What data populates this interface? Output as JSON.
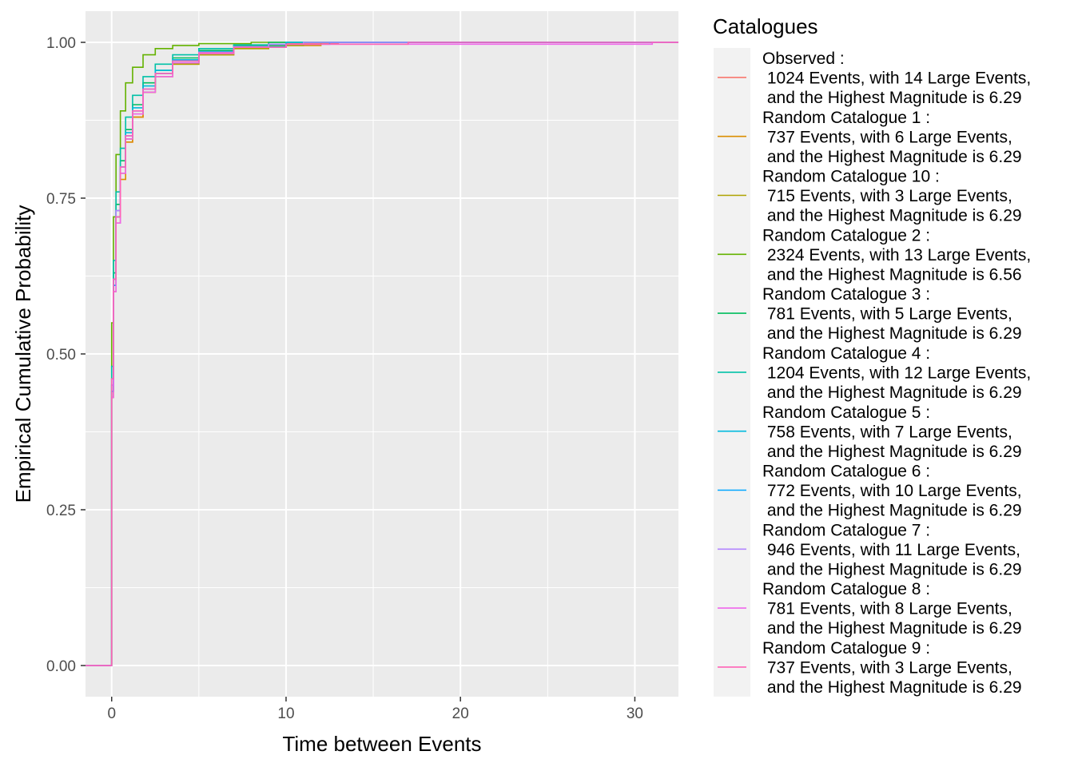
{
  "chart_data": {
    "type": "line",
    "title": "",
    "xlabel": "Time between Events",
    "ylabel": "Empirical Cumulative Probability",
    "xlim": [
      -1.5,
      32.5
    ],
    "ylim": [
      -0.05,
      1.05
    ],
    "x_ticks": [
      0,
      10,
      20,
      30
    ],
    "x_tick_labels": [
      "0",
      "10",
      "20",
      "30"
    ],
    "y_ticks": [
      0,
      0.25,
      0.5,
      0.75,
      1
    ],
    "y_tick_labels": [
      "0.00",
      "0.25",
      "0.50",
      "0.75",
      "1.00"
    ],
    "grid": true,
    "legend": {
      "title": "Catalogues",
      "position": "right"
    },
    "series": [
      {
        "name": "Observed :\n 1024 Events, with 14 Large Events,\n and the Highest Magnitude is 6.29",
        "color": "#F8766D",
        "points": [
          [
            -1.5,
            0
          ],
          [
            0,
            0
          ],
          [
            0,
            0.45
          ],
          [
            0.1,
            0.62
          ],
          [
            0.25,
            0.72
          ],
          [
            0.5,
            0.79
          ],
          [
            0.8,
            0.84
          ],
          [
            1.2,
            0.88
          ],
          [
            1.8,
            0.92
          ],
          [
            2.5,
            0.95
          ],
          [
            3.5,
            0.97
          ],
          [
            5,
            0.985
          ],
          [
            7,
            0.993
          ],
          [
            10,
            0.998
          ],
          [
            13,
            1
          ],
          [
            32.5,
            1
          ]
        ]
      },
      {
        "name": "Random Catalogue 1 :\n 737 Events, with 6 Large Events,\n and the Highest Magnitude is 6.29",
        "color": "#DB8E00",
        "points": [
          [
            -1.5,
            0
          ],
          [
            0,
            0
          ],
          [
            0,
            0.43
          ],
          [
            0.1,
            0.6
          ],
          [
            0.25,
            0.71
          ],
          [
            0.5,
            0.78
          ],
          [
            0.8,
            0.84
          ],
          [
            1.2,
            0.88
          ],
          [
            1.8,
            0.92
          ],
          [
            2.5,
            0.945
          ],
          [
            3.5,
            0.965
          ],
          [
            5,
            0.98
          ],
          [
            7,
            0.99
          ],
          [
            9,
            0.995
          ],
          [
            12,
            1
          ],
          [
            32.5,
            1
          ]
        ]
      },
      {
        "name": "Random Catalogue 10 :\n 715 Events, with 3 Large Events,\n and the Highest Magnitude is 6.29",
        "color": "#AEA200",
        "points": [
          [
            -1.5,
            0
          ],
          [
            0,
            0
          ],
          [
            0,
            0.44
          ],
          [
            0.1,
            0.61
          ],
          [
            0.25,
            0.72
          ],
          [
            0.5,
            0.79
          ],
          [
            0.8,
            0.845
          ],
          [
            1.2,
            0.885
          ],
          [
            1.8,
            0.92
          ],
          [
            2.5,
            0.95
          ],
          [
            3.5,
            0.965
          ],
          [
            5,
            0.98
          ],
          [
            7,
            0.99
          ],
          [
            9,
            0.995
          ],
          [
            11,
            1
          ],
          [
            32.5,
            1
          ]
        ]
      },
      {
        "name": "Random Catalogue 2 :\n 2324 Events, with 13 Large Events,\n and the Highest Magnitude is 6.56",
        "color": "#64B200",
        "points": [
          [
            -1.5,
            0
          ],
          [
            0,
            0
          ],
          [
            0,
            0.55
          ],
          [
            0.1,
            0.72
          ],
          [
            0.25,
            0.82
          ],
          [
            0.5,
            0.89
          ],
          [
            0.8,
            0.935
          ],
          [
            1.2,
            0.96
          ],
          [
            1.8,
            0.98
          ],
          [
            2.5,
            0.99
          ],
          [
            3.5,
            0.995
          ],
          [
            5,
            0.998
          ],
          [
            8,
            1
          ],
          [
            32.5,
            1
          ]
        ]
      },
      {
        "name": "Random Catalogue 3 :\n 781 Events, with 5 Large Events,\n and the Highest Magnitude is 6.29",
        "color": "#00BD5C",
        "points": [
          [
            -1.5,
            0
          ],
          [
            0,
            0
          ],
          [
            0,
            0.46
          ],
          [
            0.1,
            0.63
          ],
          [
            0.25,
            0.74
          ],
          [
            0.5,
            0.81
          ],
          [
            0.8,
            0.86
          ],
          [
            1.2,
            0.9
          ],
          [
            1.8,
            0.935
          ],
          [
            2.5,
            0.955
          ],
          [
            3.5,
            0.975
          ],
          [
            5,
            0.987
          ],
          [
            7,
            0.995
          ],
          [
            9,
            1
          ],
          [
            32.5,
            1
          ]
        ]
      },
      {
        "name": "Random Catalogue 4 :\n 1204 Events, with 12 Large Events,\n and the Highest Magnitude is 6.29",
        "color": "#00C1A7",
        "points": [
          [
            -1.5,
            0
          ],
          [
            0,
            0
          ],
          [
            0,
            0.48
          ],
          [
            0.1,
            0.65
          ],
          [
            0.25,
            0.76
          ],
          [
            0.5,
            0.83
          ],
          [
            0.8,
            0.88
          ],
          [
            1.2,
            0.915
          ],
          [
            1.8,
            0.945
          ],
          [
            2.5,
            0.965
          ],
          [
            3.5,
            0.98
          ],
          [
            5,
            0.99
          ],
          [
            7,
            0.996
          ],
          [
            10,
            1
          ],
          [
            32.5,
            1
          ]
        ]
      },
      {
        "name": "Random Catalogue 5 :\n 758 Events, with 7 Large Events,\n and the Highest Magnitude is 6.29",
        "color": "#00BADE",
        "points": [
          [
            -1.5,
            0
          ],
          [
            0,
            0
          ],
          [
            0,
            0.45
          ],
          [
            0.1,
            0.62
          ],
          [
            0.25,
            0.73
          ],
          [
            0.5,
            0.8
          ],
          [
            0.8,
            0.855
          ],
          [
            1.2,
            0.895
          ],
          [
            1.8,
            0.93
          ],
          [
            2.5,
            0.955
          ],
          [
            3.5,
            0.972
          ],
          [
            5,
            0.985
          ],
          [
            7,
            0.993
          ],
          [
            10,
            1
          ],
          [
            32.5,
            1
          ]
        ]
      },
      {
        "name": "Random Catalogue 6 :\n 772 Events, with 10 Large Events,\n and the Highest Magnitude is 6.29",
        "color": "#00A6FF",
        "points": [
          [
            -1.5,
            0
          ],
          [
            0,
            0
          ],
          [
            0,
            0.44
          ],
          [
            0.1,
            0.61
          ],
          [
            0.25,
            0.72
          ],
          [
            0.5,
            0.8
          ],
          [
            0.8,
            0.85
          ],
          [
            1.2,
            0.89
          ],
          [
            1.8,
            0.925
          ],
          [
            2.5,
            0.95
          ],
          [
            3.5,
            0.97
          ],
          [
            5,
            0.983
          ],
          [
            7,
            0.992
          ],
          [
            10,
            0.997
          ],
          [
            12.5,
            1
          ],
          [
            32.5,
            1
          ]
        ]
      },
      {
        "name": "Random Catalogue 7 :\n 946 Events, with 11 Large Events,\n and the Highest Magnitude is 6.29",
        "color": "#B385FF",
        "points": [
          [
            -1.5,
            0
          ],
          [
            0,
            0
          ],
          [
            0,
            0.45
          ],
          [
            0.1,
            0.62
          ],
          [
            0.25,
            0.73
          ],
          [
            0.5,
            0.8
          ],
          [
            0.8,
            0.85
          ],
          [
            1.2,
            0.89
          ],
          [
            1.8,
            0.925
          ],
          [
            2.5,
            0.95
          ],
          [
            3.5,
            0.97
          ],
          [
            5,
            0.984
          ],
          [
            7,
            0.993
          ],
          [
            9,
            0.997
          ],
          [
            11,
            1
          ],
          [
            32.5,
            1
          ]
        ]
      },
      {
        "name": "Random Catalogue 8 :\n 781 Events, with 8 Large Events,\n and the Highest Magnitude is 6.29",
        "color": "#EF67EB",
        "points": [
          [
            -1.5,
            0
          ],
          [
            0,
            0
          ],
          [
            0,
            0.43
          ],
          [
            0.1,
            0.6
          ],
          [
            0.25,
            0.71
          ],
          [
            0.5,
            0.79
          ],
          [
            0.8,
            0.845
          ],
          [
            1.2,
            0.885
          ],
          [
            1.8,
            0.92
          ],
          [
            2.5,
            0.945
          ],
          [
            3.5,
            0.967
          ],
          [
            5,
            0.982
          ],
          [
            7,
            0.992
          ],
          [
            10,
            0.997
          ],
          [
            31,
            1
          ],
          [
            32.5,
            1
          ]
        ]
      },
      {
        "name": "Random Catalogue 9 :\n 737 Events, with 3 Large Events,\n and the Highest Magnitude is 6.29",
        "color": "#FF63B6",
        "points": [
          [
            -1.5,
            0
          ],
          [
            0,
            0
          ],
          [
            0,
            0.46
          ],
          [
            0.1,
            0.62
          ],
          [
            0.25,
            0.72
          ],
          [
            0.5,
            0.8
          ],
          [
            0.8,
            0.85
          ],
          [
            1.2,
            0.89
          ],
          [
            1.8,
            0.925
          ],
          [
            2.5,
            0.95
          ],
          [
            3.5,
            0.97
          ],
          [
            5,
            0.983
          ],
          [
            7,
            0.992
          ],
          [
            10,
            0.997
          ],
          [
            17,
            1
          ],
          [
            32.5,
            1
          ]
        ]
      }
    ]
  }
}
